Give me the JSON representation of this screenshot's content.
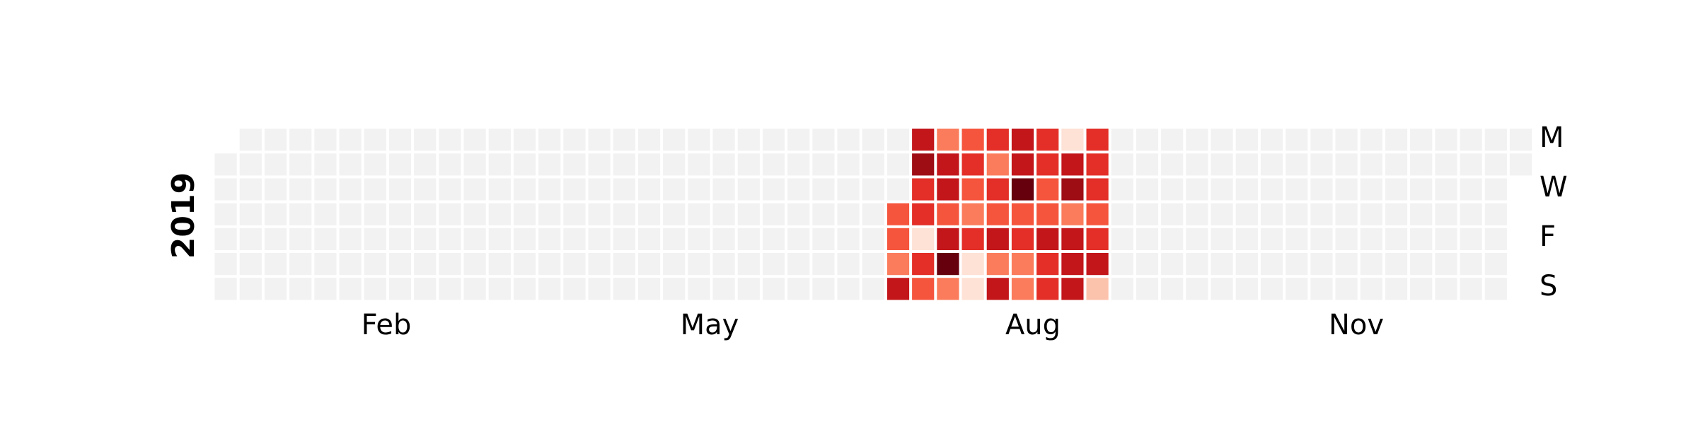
{
  "chart_data": {
    "type": "heatmap",
    "title": "",
    "year_label": "2019",
    "xlabel": "",
    "ylabel": "",
    "x_tick_labels": [
      "Feb",
      "May",
      "Aug",
      "Nov"
    ],
    "y_tick_labels": [
      "M",
      "W",
      "F",
      "S"
    ],
    "row_order": [
      "Mon",
      "Tue",
      "Wed",
      "Thu",
      "Fri",
      "Sat",
      "Sun"
    ],
    "colormap": "Reds",
    "empty_color": "#f2f2f2",
    "value_range": [
      0,
      9
    ],
    "active_weeks": [
      {
        "week_start": "2019-07-08",
        "values": [
          null,
          null,
          null,
          5,
          5,
          4,
          7
        ]
      },
      {
        "week_start": "2019-07-15",
        "values": [
          7,
          8,
          6,
          6,
          1,
          6,
          5
        ]
      },
      {
        "week_start": "2019-07-22",
        "values": [
          4,
          7,
          7,
          5,
          7,
          9,
          4
        ]
      },
      {
        "week_start": "2019-07-29",
        "values": [
          5,
          6,
          5,
          4,
          6,
          1,
          1
        ]
      },
      {
        "week_start": "2019-08-05",
        "values": [
          6,
          4,
          6,
          5,
          7,
          4,
          7
        ]
      },
      {
        "week_start": "2019-08-12",
        "values": [
          7,
          7,
          9,
          5,
          6,
          4,
          4
        ]
      },
      {
        "week_start": "2019-08-19",
        "values": [
          6,
          6,
          5,
          5,
          7,
          6,
          6
        ]
      },
      {
        "week_start": "2019-08-26",
        "values": [
          1,
          7,
          8,
          4,
          7,
          7,
          7
        ]
      },
      {
        "week_start": "2019-09-02",
        "values": [
          6,
          6,
          6,
          5,
          6,
          7,
          2
        ]
      }
    ]
  }
}
